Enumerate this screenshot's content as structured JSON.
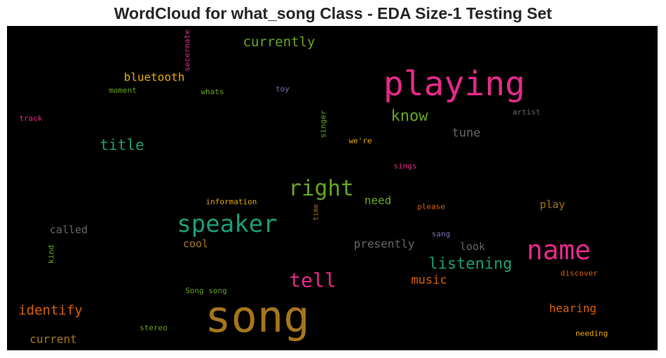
{
  "chart_data": {
    "type": "wordcloud",
    "title": "WordCloud for what_song Class - EDA Size-1 Testing Set",
    "background": "#000000",
    "palette": "Dark2",
    "words": [
      {
        "text": "song",
        "color": "#a6761d",
        "orientation": "horizontal"
      },
      {
        "text": "playing",
        "color": "#e7298a",
        "orientation": "horizontal"
      },
      {
        "text": "name",
        "color": "#e7298a",
        "orientation": "horizontal"
      },
      {
        "text": "speaker",
        "color": "#1b9e77",
        "orientation": "horizontal"
      },
      {
        "text": "right",
        "color": "#66a61e",
        "orientation": "horizontal"
      },
      {
        "text": "tell",
        "color": "#e7298a",
        "orientation": "horizontal"
      },
      {
        "text": "know",
        "color": "#66a61e",
        "orientation": "horizontal"
      },
      {
        "text": "listening",
        "color": "#1b9e77",
        "orientation": "horizontal"
      },
      {
        "text": "title",
        "color": "#1b9e77",
        "orientation": "horizontal"
      },
      {
        "text": "identify",
        "color": "#d95f02",
        "orientation": "horizontal"
      },
      {
        "text": "currently",
        "color": "#66a61e",
        "orientation": "horizontal"
      },
      {
        "text": "presently",
        "color": "#666666",
        "orientation": "horizontal"
      },
      {
        "text": "tune",
        "color": "#666666",
        "orientation": "horizontal"
      },
      {
        "text": "music",
        "color": "#d95f02",
        "orientation": "horizontal"
      },
      {
        "text": "called",
        "color": "#666666",
        "orientation": "horizontal"
      },
      {
        "text": "bluetooth",
        "color": "#e6ab02",
        "orientation": "horizontal"
      },
      {
        "text": "hearing",
        "color": "#d95f02",
        "orientation": "horizontal"
      },
      {
        "text": "current",
        "color": "#a6761d",
        "orientation": "horizontal"
      },
      {
        "text": "need",
        "color": "#66a61e",
        "orientation": "horizontal"
      },
      {
        "text": "play",
        "color": "#a6761d",
        "orientation": "horizontal"
      },
      {
        "text": "cool",
        "color": "#a6761d",
        "orientation": "horizontal"
      },
      {
        "text": "look",
        "color": "#666666",
        "orientation": "horizontal"
      },
      {
        "text": "information",
        "color": "#e6ab02",
        "orientation": "horizontal"
      },
      {
        "text": "please",
        "color": "#d95f02",
        "orientation": "horizontal"
      },
      {
        "text": "Song song",
        "color": "#66a61e",
        "orientation": "horizontal"
      },
      {
        "text": "discover",
        "color": "#d95f02",
        "orientation": "horizontal"
      },
      {
        "text": "needing",
        "color": "#e6ab02",
        "orientation": "horizontal"
      },
      {
        "text": "stereo",
        "color": "#66a61e",
        "orientation": "horizontal"
      },
      {
        "text": "moment",
        "color": "#66a61e",
        "orientation": "horizontal"
      },
      {
        "text": "whats",
        "color": "#66a61e",
        "orientation": "horizontal"
      },
      {
        "text": "toy",
        "color": "#7570b3",
        "orientation": "horizontal"
      },
      {
        "text": "artist",
        "color": "#666666",
        "orientation": "horizontal"
      },
      {
        "text": "track",
        "color": "#e7298a",
        "orientation": "horizontal"
      },
      {
        "text": "we're",
        "color": "#e6ab02",
        "orientation": "horizontal"
      },
      {
        "text": "sings",
        "color": "#e7298a",
        "orientation": "horizontal"
      },
      {
        "text": "sang",
        "color": "#7570b3",
        "orientation": "horizontal"
      },
      {
        "text": "secernate",
        "color": "#e7298a",
        "orientation": "vertical"
      },
      {
        "text": "singer",
        "color": "#66a61e",
        "orientation": "vertical"
      },
      {
        "text": "time",
        "color": "#a6761d",
        "orientation": "vertical"
      },
      {
        "text": "kind",
        "color": "#66a61e",
        "orientation": "vertical"
      }
    ]
  }
}
